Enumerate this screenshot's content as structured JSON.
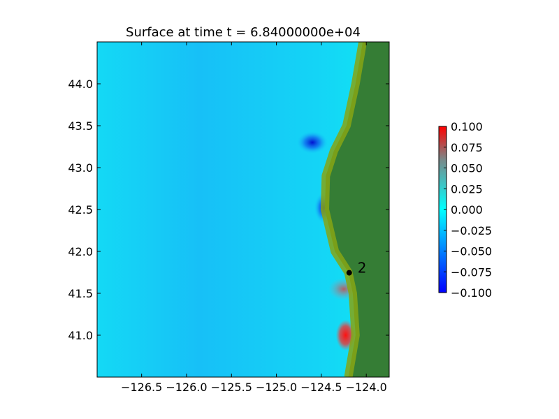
{
  "chart_data": {
    "type": "heatmap",
    "title": "Surface at time t = 6.84000000e+04",
    "xlabel": "",
    "ylabel": "",
    "xlim": [
      -126.995,
      -123.745
    ],
    "ylim": [
      40.5,
      44.5
    ],
    "x_ticks": [
      -126.5,
      -126.0,
      -125.5,
      -125.0,
      -124.5,
      -124.0
    ],
    "x_tick_labels": [
      "−126.5",
      "−126.0",
      "−125.5",
      "−125.0",
      "−124.5",
      "−124.0"
    ],
    "y_ticks": [
      41.0,
      41.5,
      42.0,
      42.5,
      43.0,
      43.5,
      44.0
    ],
    "y_tick_labels": [
      "41.0",
      "41.5",
      "42.0",
      "42.5",
      "43.0",
      "43.5",
      "44.0"
    ],
    "grid": false,
    "colorbar": {
      "vmin": -0.1,
      "vmax": 0.1,
      "ticks": [
        0.1,
        0.075,
        0.05,
        0.025,
        0.0,
        -0.025,
        -0.05,
        -0.075,
        -0.1
      ],
      "tick_labels": [
        "0.100",
        "0.075",
        "0.050",
        "0.025",
        "0.000",
        "−0.025",
        "−0.050",
        "−0.075",
        "−0.100"
      ],
      "colors": [
        "#0000ff",
        "#00ffff",
        "#ff0000"
      ]
    },
    "colors": {
      "ocean_base": "#10e6f3",
      "ocean_mid": "#17c6f7",
      "land": "#357d35",
      "coastal_land": "#86a514"
    },
    "gauges": [
      {
        "label": "2",
        "x": -124.19,
        "y": 41.745
      }
    ],
    "coastline": [
      [
        -124.04,
        44.5
      ],
      [
        -124.12,
        44.0
      ],
      [
        -124.22,
        43.5
      ],
      [
        -124.36,
        43.2
      ],
      [
        -124.45,
        42.9
      ],
      [
        -124.46,
        42.5
      ],
      [
        -124.35,
        42.0
      ],
      [
        -124.2,
        41.75
      ],
      [
        -124.15,
        41.5
      ],
      [
        -124.12,
        41.0
      ],
      [
        -124.2,
        40.5
      ]
    ],
    "anomalies": [
      {
        "kind": "positive",
        "x": -124.23,
        "y": 41.0,
        "value": 0.1
      },
      {
        "kind": "positive",
        "x": -124.25,
        "y": 41.55,
        "value": 0.06
      },
      {
        "kind": "negative",
        "x": -124.47,
        "y": 42.52,
        "value": -0.09
      },
      {
        "kind": "negative",
        "x": -124.6,
        "y": 43.3,
        "value": -0.04
      }
    ]
  }
}
